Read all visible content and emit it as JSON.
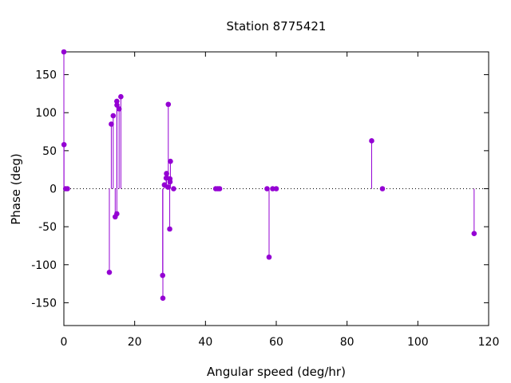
{
  "chart_data": {
    "type": "scatter",
    "style": "impulses-with-points",
    "title": "Station 8775421",
    "xlabel": "Angular speed (deg/hr)",
    "ylabel": "Phase (deg)",
    "xlim": [
      0,
      120
    ],
    "ylim": [
      -180,
      180
    ],
    "xticks": [
      0,
      20,
      40,
      60,
      80,
      100,
      120
    ],
    "yticks": [
      -150,
      -100,
      -50,
      0,
      50,
      100,
      150
    ],
    "grid": false,
    "zero_line": "dotted",
    "color": "#9400d3",
    "series": [
      {
        "points": [
          {
            "x": 0.0,
            "y": 180
          },
          {
            "x": 0.04,
            "y": 58
          },
          {
            "x": 0.5,
            "y": 0
          },
          {
            "x": 1.0,
            "y": 0
          },
          {
            "x": 12.85,
            "y": -110
          },
          {
            "x": 13.4,
            "y": 85
          },
          {
            "x": 13.94,
            "y": 96
          },
          {
            "x": 14.5,
            "y": -37
          },
          {
            "x": 14.96,
            "y": 115
          },
          {
            "x": 14.96,
            "y": -33
          },
          {
            "x": 15.0,
            "y": 110
          },
          {
            "x": 15.6,
            "y": 105
          },
          {
            "x": 16.1,
            "y": 121
          },
          {
            "x": 27.9,
            "y": -114
          },
          {
            "x": 27.97,
            "y": -144
          },
          {
            "x": 28.4,
            "y": 5
          },
          {
            "x": 28.9,
            "y": 14
          },
          {
            "x": 29.0,
            "y": 20
          },
          {
            "x": 29.4,
            "y": 2
          },
          {
            "x": 29.5,
            "y": 111
          },
          {
            "x": 29.9,
            "y": -53
          },
          {
            "x": 29.96,
            "y": 13
          },
          {
            "x": 30.0,
            "y": 9
          },
          {
            "x": 30.1,
            "y": 36
          },
          {
            "x": 31.0,
            "y": 0
          },
          {
            "x": 42.9,
            "y": 0
          },
          {
            "x": 43.5,
            "y": 0
          },
          {
            "x": 44.0,
            "y": 0
          },
          {
            "x": 57.4,
            "y": 0
          },
          {
            "x": 57.97,
            "y": -90
          },
          {
            "x": 58.98,
            "y": 0
          },
          {
            "x": 60.0,
            "y": 0
          },
          {
            "x": 86.95,
            "y": 63
          },
          {
            "x": 90.0,
            "y": 0
          },
          {
            "x": 115.9,
            "y": -59
          }
        ]
      }
    ]
  }
}
